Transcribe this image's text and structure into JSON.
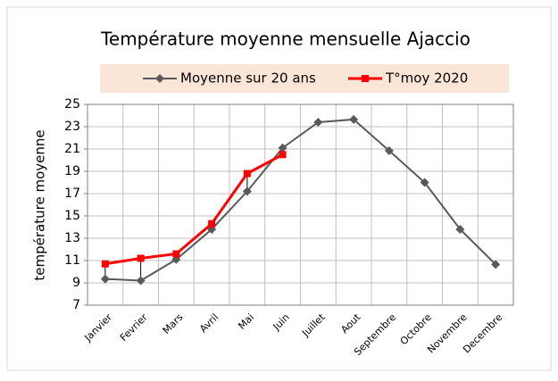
{
  "chart_data": {
    "type": "line",
    "title": "Température moyenne mensuelle Ajaccio",
    "y_label": "température moyenne",
    "categories": [
      "Janvier",
      "Fevrier",
      "Mars",
      "Avril",
      "Mai",
      "Juin",
      "Juillet",
      "Aout",
      "Septembre",
      "Octobre",
      "Novembre",
      "Decembre"
    ],
    "series": [
      {
        "name": "Moyenne sur 20 ans",
        "color": "#595959",
        "marker": "diamond",
        "values": [
          9.35,
          9.2,
          11.1,
          13.8,
          17.2,
          21.1,
          23.4,
          23.65,
          20.85,
          18.0,
          13.8,
          10.65
        ]
      },
      {
        "name": "T°moy 2020",
        "color": "#ff0000",
        "marker": "square",
        "values": [
          10.7,
          11.2,
          11.6,
          14.3,
          18.8,
          20.5,
          null,
          null,
          null,
          null,
          null,
          null
        ]
      }
    ],
    "ylim": [
      7,
      25
    ],
    "yticks": [
      7,
      9,
      11,
      13,
      15,
      17,
      19,
      21,
      23,
      25
    ],
    "grid": true,
    "legend": "top"
  }
}
